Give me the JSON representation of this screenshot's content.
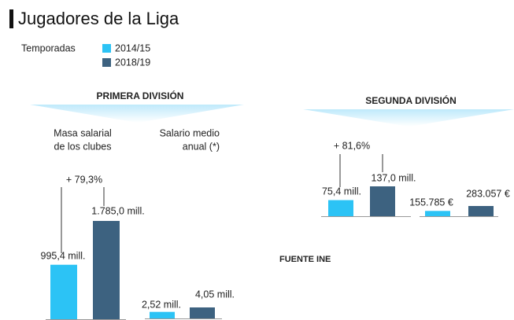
{
  "title": "Jugadores de la Liga",
  "legend": {
    "title": "Temporadas",
    "entries": [
      {
        "name": "2014/15",
        "color": "#2cc3f5"
      },
      {
        "name": "2018/19",
        "color": "#3d6280"
      }
    ]
  },
  "sections": [
    "PRIMERA DIVISIÓN",
    "SEGUNDA DIVISIÓN"
  ],
  "chart_data": [
    {
      "type": "bar",
      "title": [
        "Masa salarial",
        "de los clubes"
      ],
      "values": [
        995.4,
        1785.0
      ],
      "value_labels": [
        "995,4 mill.",
        "1.785,0 mill."
      ],
      "annotation": "+ 79,3%"
    },
    {
      "type": "bar",
      "title": [
        "Salario medio",
        "anual (*)"
      ],
      "values": [
        2.52,
        4.05
      ],
      "value_labels": [
        "2,52 mill.",
        "4,05 mill."
      ]
    },
    {
      "type": "bar",
      "values": [
        75.4,
        137.0
      ],
      "value_labels": [
        "75,4 mill.",
        "137,0 mill."
      ],
      "annotation": "+ 81,6%"
    },
    {
      "type": "bar",
      "values": [
        155785,
        283057
      ],
      "value_labels": [
        "155.785 €",
        "283.057 €"
      ]
    }
  ],
  "source": "FUENTE INE"
}
